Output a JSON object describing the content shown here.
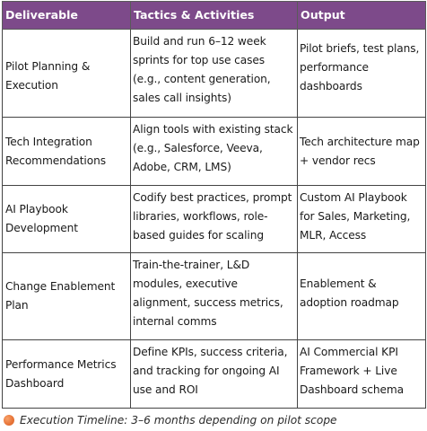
{
  "table": {
    "headers": [
      "Deliverable",
      "Tactics & Activities",
      "Output"
    ],
    "rows": [
      {
        "deliverable": "Pilot Planning & Execution",
        "tactics": "Build and run 6–12 week sprints for top use cases (e.g., content generation, sales call insights)",
        "output": "Pilot briefs, test plans, performance dashboards"
      },
      {
        "deliverable": "Tech Integration Recommendations",
        "tactics": "Align tools with existing stack (e.g., Salesforce, Veeva, Adobe, CRM, LMS)",
        "output": "Tech architecture map + vendor recs"
      },
      {
        "deliverable": "AI Playbook Development",
        "tactics": "Codify best practices, prompt libraries, workflows, role-based guides for scaling",
        "output": "Custom AI Playbook for Sales, Marketing, MLR, Access"
      },
      {
        "deliverable": "Change Enablement Plan",
        "tactics": "Train-the-trainer, L&D modules, executive alignment, success metrics, internal comms",
        "output": "Enablement & adoption roadmap"
      },
      {
        "deliverable": "Performance Metrics Dashboard",
        "tactics": "Define KPIs, success criteria, and tracking for ongoing AI use and ROI",
        "output": "AI Commercial KPI Framework + Live Dashboard schema"
      }
    ]
  },
  "footer": {
    "icon": "orange-circle-icon",
    "text": "Execution Timeline: 3–6 months depending on pilot scope"
  },
  "colors": {
    "header_bg": "#7d4a8a",
    "header_text": "#ffffff",
    "bullet": "#e8763a"
  }
}
